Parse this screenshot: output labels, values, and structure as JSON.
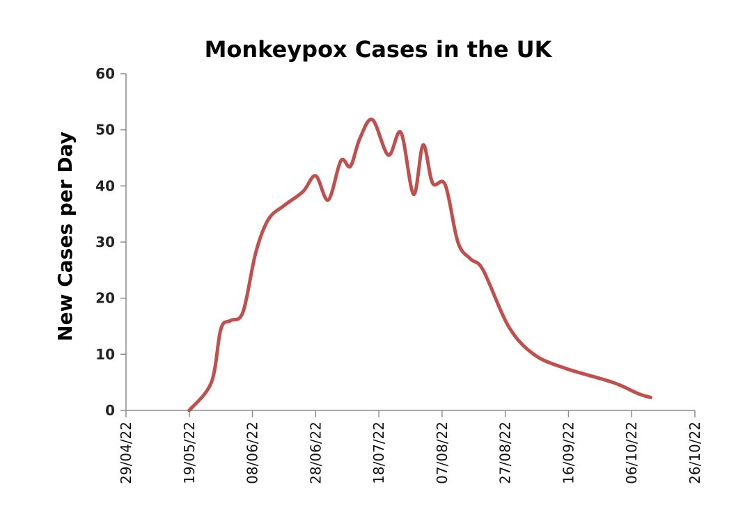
{
  "chart_data": {
    "type": "line",
    "title": "Monkeypox Cases in the UK",
    "xlabel": "",
    "ylabel": "New Cases per Day",
    "x_ticks": [
      "29/04/22",
      "19/05/22",
      "08/06/22",
      "28/06/22",
      "18/07/22",
      "07/08/22",
      "27/08/22",
      "16/09/22",
      "06/10/22",
      "26/10/22"
    ],
    "y_ticks": [
      "0",
      "10",
      "20",
      "30",
      "40",
      "50",
      "60"
    ],
    "xlim": [
      "2022-04-29",
      "2022-10-26"
    ],
    "ylim": [
      0,
      60
    ],
    "grid": false,
    "legend": "none",
    "series": [
      {
        "color": "#c0504d",
        "points": [
          [
            "2022-05-19",
            0
          ],
          [
            "2022-05-26",
            5
          ],
          [
            "2022-05-29",
            14.5
          ],
          [
            "2022-06-01",
            16
          ],
          [
            "2022-06-05",
            17.5
          ],
          [
            "2022-06-09",
            28
          ],
          [
            "2022-06-13",
            34
          ],
          [
            "2022-06-18",
            36.5
          ],
          [
            "2022-06-24",
            39
          ],
          [
            "2022-06-28",
            41.8
          ],
          [
            "2022-07-02",
            37.5
          ],
          [
            "2022-07-06",
            44.5
          ],
          [
            "2022-07-09",
            43.5
          ],
          [
            "2022-07-12",
            48.5
          ],
          [
            "2022-07-16",
            51.8
          ],
          [
            "2022-07-21",
            45.5
          ],
          [
            "2022-07-25",
            49.5
          ],
          [
            "2022-07-29",
            38.5
          ],
          [
            "2022-08-01",
            47.3
          ],
          [
            "2022-08-04",
            40.5
          ],
          [
            "2022-08-08",
            40.2
          ],
          [
            "2022-08-12",
            30
          ],
          [
            "2022-08-16",
            27
          ],
          [
            "2022-08-20",
            25
          ],
          [
            "2022-08-28",
            15
          ],
          [
            "2022-09-05",
            10
          ],
          [
            "2022-09-15",
            7.5
          ],
          [
            "2022-09-30",
            5
          ],
          [
            "2022-10-08",
            3
          ],
          [
            "2022-10-12",
            2.3
          ]
        ]
      }
    ]
  }
}
